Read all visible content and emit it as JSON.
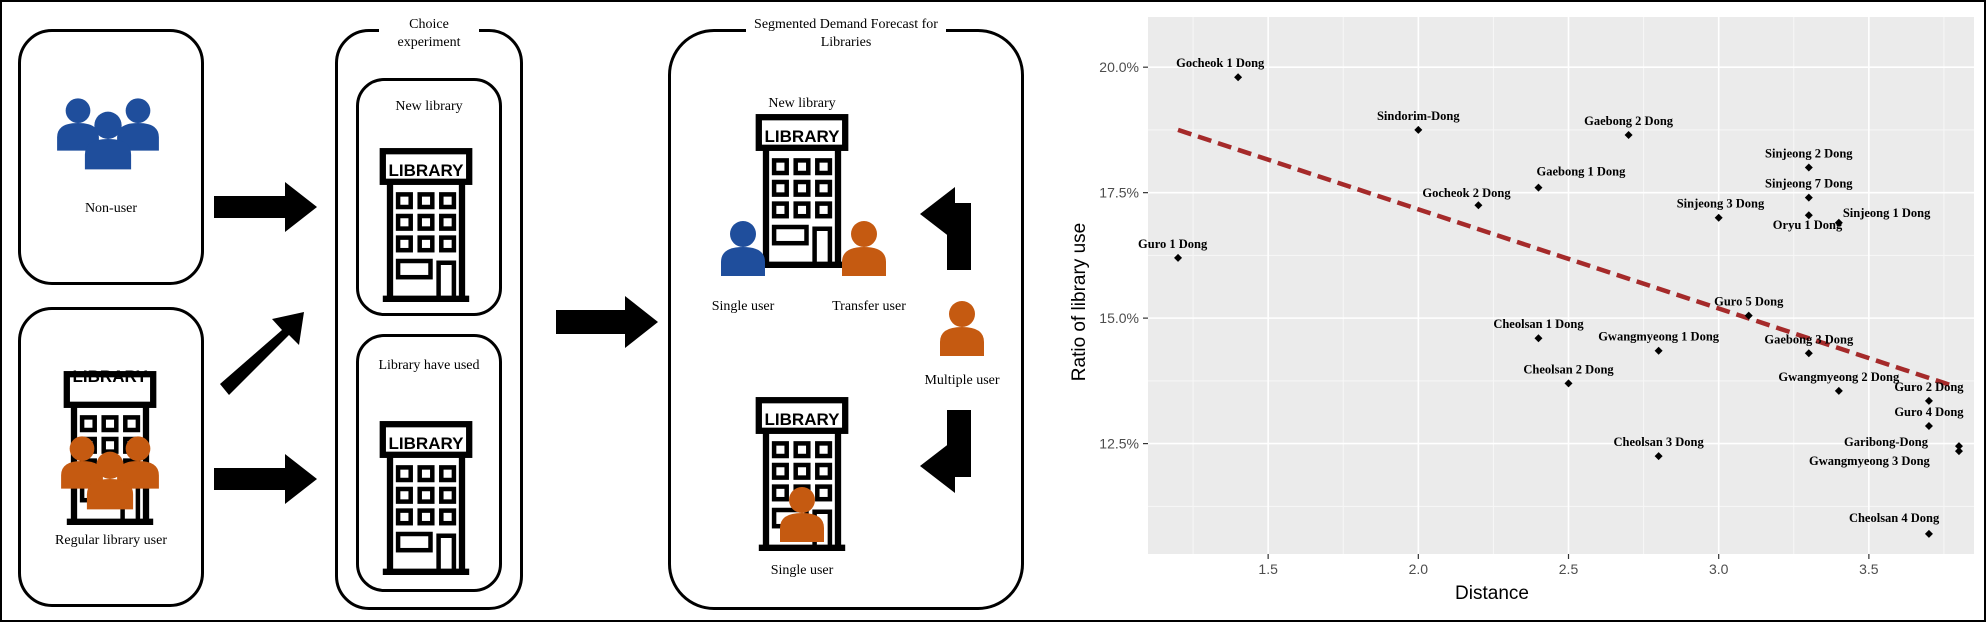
{
  "diagram": {
    "non_user_label": "Non-user",
    "regular_user_label": "Regular library user",
    "choice_title": "Choice experiment",
    "new_library_label": "New library",
    "library_have_used_label": "Library have used",
    "segmented_title": "Segmented Demand Forecast for Libraries",
    "seg_new_library_label": "New library",
    "single_user_label": "Single user",
    "transfer_user_label": "Transfer user",
    "multiple_user_label": "Multiple user",
    "single_user_bottom_label": "Single user",
    "library_sign": "LIBRARY",
    "colors": {
      "non_user": "#1f4e9c",
      "user": "#c55a11",
      "black": "#000000"
    }
  },
  "chart_data": {
    "type": "scatter",
    "xlabel": "Distance",
    "ylabel": "Ratio of library use",
    "xlim": [
      1.1,
      3.85
    ],
    "ylim": [
      10.3,
      21.0
    ],
    "xticks": [
      1.5,
      2.0,
      2.5,
      3.0,
      3.5
    ],
    "xtick_labels": [
      "1.5",
      "2.0",
      "2.5",
      "3.0",
      "3.5"
    ],
    "yticks": [
      12.5,
      15.0,
      17.5,
      20.0
    ],
    "ytick_labels": [
      "12.5%",
      "15.0%",
      "17.5%",
      "20.0%"
    ],
    "grid": true,
    "trend_line": {
      "x": [
        1.2,
        3.78
      ],
      "y": [
        18.75,
        13.65
      ],
      "color": "#a52a2a",
      "style": "dashed"
    },
    "points": [
      {
        "label": "Gocheok 1 Dong",
        "x": 1.4,
        "y": 19.8
      },
      {
        "label": "Sindorim-Dong",
        "x": 2.0,
        "y": 18.75
      },
      {
        "label": "Gaebong 2 Dong",
        "x": 2.7,
        "y": 18.65
      },
      {
        "label": "Sinjeong 2 Dong",
        "x": 3.3,
        "y": 18.0
      },
      {
        "label": "Gaebong 1 Dong",
        "x": 2.4,
        "y": 17.6
      },
      {
        "label": "Sinjeong 7 Dong",
        "x": 3.3,
        "y": 17.4
      },
      {
        "label": "Gocheok 2 Dong",
        "x": 2.2,
        "y": 17.25
      },
      {
        "label": "Sinjeong 3 Dong",
        "x": 3.0,
        "y": 17.0
      },
      {
        "label": "Sinjeong 1 Dong",
        "x": 3.4,
        "y": 16.9
      },
      {
        "label": "Oryu 1 Dong",
        "x": 3.3,
        "y": 17.05
      },
      {
        "label": "Guro 1 Dong",
        "x": 1.2,
        "y": 16.2
      },
      {
        "label": "Guro 5 Dong",
        "x": 3.1,
        "y": 15.05
      },
      {
        "label": "Cheolsan 1 Dong",
        "x": 2.4,
        "y": 14.6
      },
      {
        "label": "Gwangmyeong 1 Dong",
        "x": 2.8,
        "y": 14.35
      },
      {
        "label": "Gaebong 3 Dong",
        "x": 3.3,
        "y": 14.3
      },
      {
        "label": "Cheolsan 2 Dong",
        "x": 2.5,
        "y": 13.7
      },
      {
        "label": "Gwangmyeong 2 Dong",
        "x": 3.4,
        "y": 13.55
      },
      {
        "label": "Guro 2 Dong",
        "x": 3.7,
        "y": 13.35
      },
      {
        "label": "Guro 4 Dong",
        "x": 3.7,
        "y": 12.85
      },
      {
        "label": "Garibong-Dong",
        "x": 3.8,
        "y": 12.45
      },
      {
        "label": "Gwangmyeong 3 Dong",
        "x": 3.8,
        "y": 12.35
      },
      {
        "label": "Cheolsan 3 Dong",
        "x": 2.8,
        "y": 12.25
      },
      {
        "label": "Cheolsan 4 Dong",
        "x": 3.7,
        "y": 10.7
      }
    ]
  }
}
